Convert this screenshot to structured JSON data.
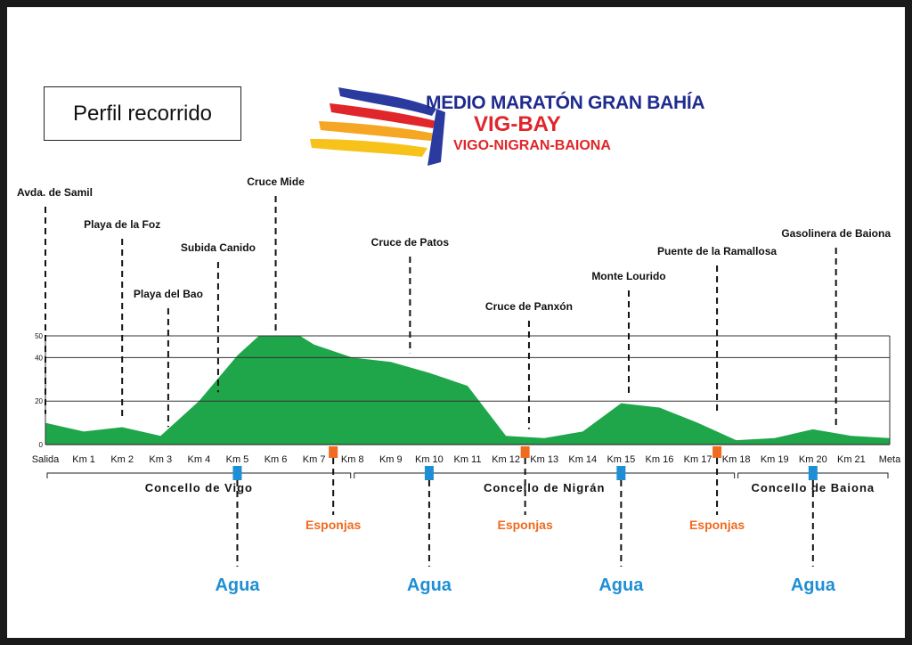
{
  "title": "Perfil recorrido",
  "logo": {
    "line1": "MEDIO MARATÓN GRAN BAHÍA",
    "line2": "VIG-BAY",
    "line3": "VIGO-NIGRAN-BAIONA"
  },
  "colors": {
    "profile": "#1fa64a",
    "agua": "#1e8fd6",
    "esponjas": "#f06a1f",
    "grid": "#333333",
    "text": "#111111"
  },
  "chart_data": {
    "type": "area",
    "ylim": [
      0,
      50
    ],
    "yticks": [
      "0",
      "20",
      "40",
      "50"
    ],
    "grid": true,
    "categories": [
      "Salida",
      "Km 1",
      "Km 2",
      "Km 3",
      "Km 4",
      "Km 5",
      "Km 6",
      "Km 7",
      "Km 8",
      "Km 9",
      "Km 10",
      "Km 11",
      "Km 12",
      "Km 13",
      "Km 14",
      "Km 15",
      "Km 16",
      "Km 17",
      "Km 18",
      "Km 19",
      "Km 20",
      "Km 21",
      "Meta"
    ],
    "profile": [
      {
        "km": 0,
        "alt": 10
      },
      {
        "km": 1,
        "alt": 6
      },
      {
        "km": 2,
        "alt": 8
      },
      {
        "km": 3,
        "alt": 4
      },
      {
        "km": 4,
        "alt": 20
      },
      {
        "km": 5,
        "alt": 41
      },
      {
        "km": 6,
        "alt": 57
      },
      {
        "km": 7,
        "alt": 46
      },
      {
        "km": 8,
        "alt": 40
      },
      {
        "km": 9,
        "alt": 38
      },
      {
        "km": 10,
        "alt": 33
      },
      {
        "km": 11,
        "alt": 27
      },
      {
        "km": 12,
        "alt": 4
      },
      {
        "km": 13,
        "alt": 3
      },
      {
        "km": 14,
        "alt": 6
      },
      {
        "km": 15,
        "alt": 19
      },
      {
        "km": 16,
        "alt": 17
      },
      {
        "km": 17,
        "alt": 10
      },
      {
        "km": 18,
        "alt": 2
      },
      {
        "km": 19,
        "alt": 3
      },
      {
        "km": 20,
        "alt": 7
      },
      {
        "km": 21,
        "alt": 4
      },
      {
        "km": 22,
        "alt": 3
      }
    ],
    "landmarks": [
      {
        "label": "Avda. de Samil",
        "km": 0
      },
      {
        "label": "Playa de la Foz",
        "km": 2
      },
      {
        "label": "Playa del Bao",
        "km": 3.2
      },
      {
        "label": "Subida Canido",
        "km": 4.5
      },
      {
        "label": "Cruce Mide",
        "km": 6
      },
      {
        "label": "Cruce de Patos",
        "km": 9.5
      },
      {
        "label": "Cruce de Panxón",
        "km": 12.6
      },
      {
        "label": "Monte Lourido",
        "km": 15.2
      },
      {
        "label": "Puente de la Ramallosa",
        "km": 17.5
      },
      {
        "label": "Gasolinera de Baiona",
        "km": 20.6
      }
    ],
    "councils": [
      {
        "name": "Concello de Vigo",
        "from": 0,
        "to": 8
      },
      {
        "name": "Concello de Nigrán",
        "from": 8,
        "to": 18
      },
      {
        "name": "Concello de Baiona",
        "from": 18,
        "to": 22
      }
    ],
    "agua": [
      {
        "label": "Agua",
        "km": 5
      },
      {
        "label": "Agua",
        "km": 10
      },
      {
        "label": "Agua",
        "km": 15
      },
      {
        "label": "Agua",
        "km": 20
      }
    ],
    "esponjas": [
      {
        "label": "Esponjas",
        "km": 7.5
      },
      {
        "label": "Esponjas",
        "km": 12.5
      },
      {
        "label": "Esponjas",
        "km": 17.5
      }
    ]
  }
}
